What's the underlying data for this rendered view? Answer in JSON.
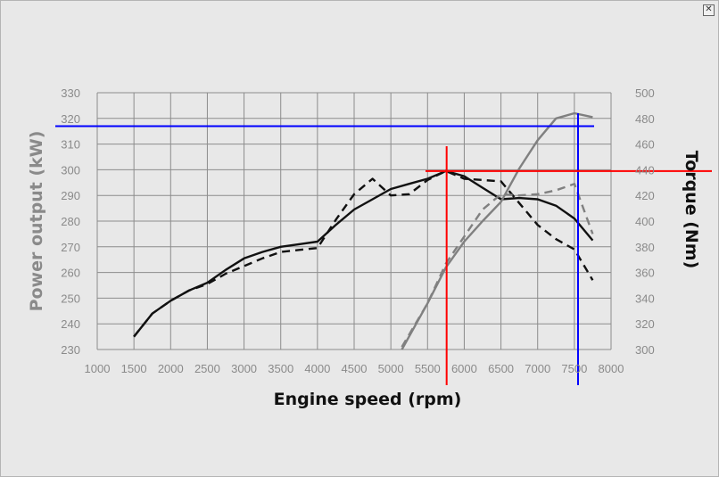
{
  "window": {
    "close_icon": "close-icon"
  },
  "chart_data": {
    "type": "line",
    "xlabel": "Engine speed (rpm)",
    "ylabel": "Power output (kW)",
    "y2label": "Torque (Nm)",
    "xlim": [
      1000,
      8000
    ],
    "ylim": [
      230,
      330
    ],
    "y2lim": [
      300,
      500
    ],
    "x_ticks": [
      "1000",
      "1500",
      "2000",
      "2500",
      "3000",
      "3500",
      "4000",
      "4500",
      "5000",
      "5500",
      "6000",
      "6500",
      "7000",
      "7500",
      "8000"
    ],
    "y_ticks": [
      "230",
      "240",
      "250",
      "260",
      "270",
      "280",
      "290",
      "300",
      "310",
      "320",
      "330"
    ],
    "y2_ticks": [
      "300",
      "320",
      "340",
      "360",
      "380",
      "400",
      "420",
      "440",
      "460",
      "480",
      "500"
    ],
    "grid": true,
    "series": [
      {
        "axis": "left",
        "color": "#111111",
        "dash": "solid",
        "x": [
          1500,
          1750,
          2000,
          2250,
          2500,
          2750,
          3000,
          3250,
          3500,
          3750,
          4000,
          4250,
          4500,
          4750,
          5000,
          5250,
          5500,
          5750,
          6000,
          6250,
          6500,
          6750,
          7000,
          7250,
          7500,
          7750
        ],
        "y": [
          235,
          244,
          249,
          253,
          256,
          261,
          265.5,
          268,
          270,
          271,
          272,
          278.5,
          284.5,
          288.5,
          292.5,
          294.5,
          296.5,
          299.5,
          297.5,
          293,
          288.5,
          289,
          288.5,
          286,
          281,
          272.5
        ]
      },
      {
        "axis": "left",
        "color": "#111111",
        "dash": "dashed",
        "x": [
          1500,
          1750,
          2000,
          2250,
          2500,
          2750,
          3000,
          3250,
          3500,
          3750,
          4000,
          4250,
          4500,
          4750,
          5000,
          5250,
          5500,
          5750,
          6000,
          6250,
          6500,
          6750,
          7000,
          7250,
          7500,
          7750
        ],
        "y": [
          235,
          244,
          249,
          253,
          255.5,
          259.5,
          262.5,
          265.5,
          268,
          268.8,
          269.5,
          280.5,
          290.5,
          296.5,
          290,
          290.5,
          296,
          299.5,
          296.5,
          296,
          295.5,
          287,
          278.5,
          273,
          269,
          257
        ]
      },
      {
        "axis": "right",
        "color": "#808080",
        "dash": "solid",
        "x": [
          5150,
          5500,
          5750,
          6000,
          6250,
          6500,
          6750,
          7000,
          7250,
          7500,
          7750
        ],
        "y": [
          300,
          336,
          364,
          384,
          400,
          415,
          441,
          463,
          480,
          484,
          481
        ]
      },
      {
        "axis": "right",
        "color": "#808080",
        "dash": "dashed",
        "x": [
          5150,
          5500,
          5750,
          6000,
          6250,
          6500,
          6750,
          7000,
          7250,
          7500,
          7750
        ],
        "y": [
          302,
          336,
          367,
          388,
          409,
          421,
          420,
          421,
          424,
          429,
          390
        ]
      }
    ],
    "annotations": [
      {
        "type": "vertical-line",
        "color": "#0000ff",
        "x": 7550
      },
      {
        "type": "horizontal-line",
        "color": "#0000ff",
        "y": 317
      },
      {
        "type": "vertical-line",
        "color": "#ff0000",
        "x": 5760
      },
      {
        "type": "horizontal-line",
        "color": "#ff0000",
        "y": 299.5
      }
    ]
  }
}
